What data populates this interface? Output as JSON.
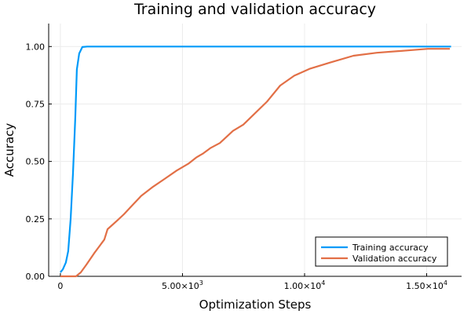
{
  "chart_data": {
    "type": "line",
    "title": "Training and validation accuracy",
    "xlabel": "Optimization Steps",
    "ylabel": "Accuracy",
    "xlim": [
      -480,
      16430
    ],
    "ylim": [
      0,
      1.1
    ],
    "grid": true,
    "legend_position": "bottom-right",
    "xticks": [
      0,
      5000,
      10000,
      15000
    ],
    "xtick_labels": [
      {
        "base": "0",
        "exp": ""
      },
      {
        "base": "5.00×10",
        "exp": "3"
      },
      {
        "base": "1.00×10",
        "exp": "4"
      },
      {
        "base": "1.50×10",
        "exp": "4"
      }
    ],
    "yticks": [
      0,
      0.25,
      0.5,
      0.75,
      1.0
    ],
    "ytick_labels": [
      "0.00",
      "0.25",
      "0.50",
      "0.75",
      "1.00"
    ],
    "series": [
      {
        "name": "Training accuracy",
        "color": "#009af9",
        "x": [
          0,
          100,
          225,
          320,
          420,
          515,
          610,
          675,
          770,
          900,
          1100,
          16000
        ],
        "y": [
          0.017,
          0.03,
          0.06,
          0.11,
          0.25,
          0.45,
          0.69,
          0.9,
          0.97,
          0.998,
          1.0,
          1.0
        ]
      },
      {
        "name": "Validation accuracy",
        "color": "#e26f46",
        "x": [
          0,
          640,
          835,
          1060,
          1380,
          1800,
          1930,
          2350,
          2600,
          3000,
          3310,
          3800,
          4280,
          4760,
          5240,
          5560,
          5850,
          6140,
          6530,
          7070,
          7490,
          7880,
          8460,
          9000,
          9580,
          10230,
          11030,
          12000,
          12960,
          14240,
          15050,
          15950
        ],
        "y": [
          0.0,
          0.0,
          0.017,
          0.05,
          0.1,
          0.16,
          0.205,
          0.245,
          0.27,
          0.315,
          0.35,
          0.39,
          0.425,
          0.46,
          0.49,
          0.517,
          0.535,
          0.558,
          0.58,
          0.633,
          0.66,
          0.7,
          0.76,
          0.83,
          0.873,
          0.904,
          0.93,
          0.96,
          0.973,
          0.983,
          0.99,
          0.99
        ]
      }
    ]
  }
}
